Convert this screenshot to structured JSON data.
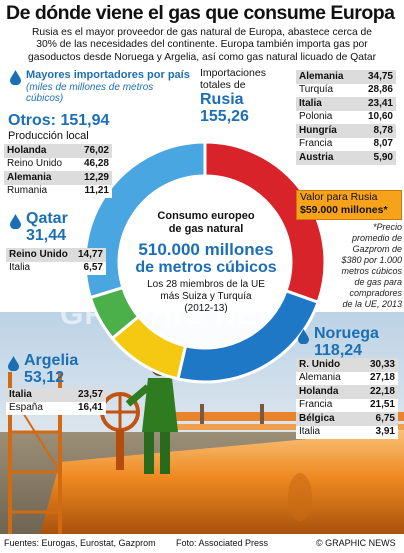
{
  "title": "De dónde viene el gas que consume Europa",
  "intro": [
    "Rusia es el mayor proveedor de gas natural de Europa, abastece cerca de",
    "30% de las necesidades del continente. Europa también importa gas por",
    "gasoductos desde Noruega y Argelia, así como gas natural licuado de Qatar"
  ],
  "legend": {
    "heading": "Mayores importadores por país",
    "units": "(miles de millones de metros cúbicos)"
  },
  "russia": {
    "label": "Importaciones totales de",
    "name": "Rusia",
    "value": "155,26",
    "importers": [
      {
        "name": "Alemania",
        "value": "34,75"
      },
      {
        "name": "Turquía",
        "value": "28,86"
      },
      {
        "name": "Italia",
        "value": "23,41"
      },
      {
        "name": "Polonia",
        "value": "10,60"
      },
      {
        "name": "Hungría",
        "value": "8,78"
      },
      {
        "name": "Francia",
        "value": "8,07"
      },
      {
        "name": "Austria",
        "value": "5,90"
      }
    ],
    "value_label": "Valor para Rusia",
    "value_amount": "$59.000 millones*"
  },
  "others": {
    "name": "Otros:",
    "value": "151,94",
    "sub": "Producción local",
    "importers": [
      {
        "name": "Holanda",
        "value": "76,02"
      },
      {
        "name": "Reino Unido",
        "value": "46,28"
      },
      {
        "name": "Alemania",
        "value": "12,29"
      },
      {
        "name": "Rumania",
        "value": "11,21"
      }
    ]
  },
  "qatar": {
    "name": "Qatar",
    "value": "31,44",
    "importers": [
      {
        "name": "Reino Unido",
        "value": "14,77"
      },
      {
        "name": "Italia",
        "value": "6,57"
      }
    ]
  },
  "norway": {
    "name": "Noruega",
    "value": "118,24",
    "importers": [
      {
        "name": "R. Unido",
        "value": "30,33"
      },
      {
        "name": "Alemania",
        "value": "27,18"
      },
      {
        "name": "Holanda",
        "value": "22,18"
      },
      {
        "name": "Francia",
        "value": "21,51"
      },
      {
        "name": "Bélgica",
        "value": "6,75"
      },
      {
        "name": "Italia",
        "value": "3,91"
      }
    ]
  },
  "algeria": {
    "name": "Argelia",
    "value": "53,12",
    "importers": [
      {
        "name": "Italia",
        "value": "23,57"
      },
      {
        "name": "España",
        "value": "16,41"
      }
    ]
  },
  "center": {
    "l1": "Consumo europeo",
    "l2": "de gas natural",
    "big1": "510.000 millones",
    "big2": "de metros cúbicos",
    "s1": "Los 28 miembros de la UE",
    "s2": "más Suiza y Turquía",
    "s3": "(2012-13)"
  },
  "footnote": [
    "*Precio",
    "promedio de",
    "Gazprom de",
    "$380 por 1.000",
    "metros cúbicos",
    "de gas para",
    "compradores",
    "de la UE, 2013"
  ],
  "watermark": "GRAPHIC NEWS",
  "credits": {
    "sources": "Fuentes: Eurogas, Eurostat, Gazprom",
    "photo": "Foto: Associated Press",
    "copyright": "© GRAPHIC NEWS"
  },
  "colors": {
    "russia": "#d9232a",
    "norway": "#1e78c6",
    "algeria": "#f5c912",
    "qatar": "#4bb04a",
    "others": "#4aa6e0",
    "accent_blue": "#1d6fb5",
    "value_box": "#f7a21b"
  },
  "chart_data": {
    "type": "pie",
    "title": "Consumo europeo de gas natural",
    "units": "miles de millones de metros cúbicos",
    "slices": [
      {
        "name": "Rusia",
        "value": 155.26
      },
      {
        "name": "Noruega",
        "value": 118.24
      },
      {
        "name": "Argelia",
        "value": 53.12
      },
      {
        "name": "Qatar",
        "value": 31.44
      },
      {
        "name": "Otros",
        "value": 151.94
      }
    ]
  }
}
